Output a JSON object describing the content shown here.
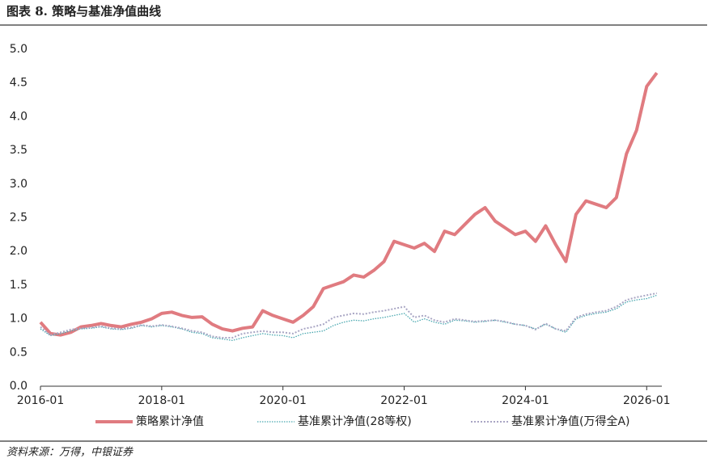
{
  "header": {
    "title": "图表 8. 策略与基准净值曲线"
  },
  "chart_data": {
    "type": "line",
    "x": [
      "2016-01",
      "2016-03",
      "2016-05",
      "2016-07",
      "2016-09",
      "2016-11",
      "2017-01",
      "2017-03",
      "2017-05",
      "2017-07",
      "2017-09",
      "2017-11",
      "2018-01",
      "2018-03",
      "2018-05",
      "2018-07",
      "2018-09",
      "2018-11",
      "2019-01",
      "2019-03",
      "2019-05",
      "2019-07",
      "2019-09",
      "2019-11",
      "2020-01",
      "2020-03",
      "2020-05",
      "2020-07",
      "2020-09",
      "2020-11",
      "2021-01",
      "2021-03",
      "2021-05",
      "2021-07",
      "2021-09",
      "2021-11",
      "2022-01",
      "2022-03",
      "2022-05",
      "2022-07",
      "2022-09",
      "2022-11",
      "2023-01",
      "2023-03",
      "2023-05",
      "2023-07",
      "2023-09",
      "2023-11",
      "2024-01",
      "2024-03",
      "2024-05",
      "2024-07",
      "2024-09",
      "2024-11",
      "2025-01",
      "2025-03",
      "2025-05",
      "2025-07",
      "2025-09",
      "2025-11",
      "2026-01",
      "2026-03"
    ],
    "series": [
      {
        "name": "策略累计净值",
        "color": "#e07b80",
        "values": [
          0.95,
          0.78,
          0.76,
          0.8,
          0.88,
          0.9,
          0.93,
          0.9,
          0.88,
          0.92,
          0.95,
          1.0,
          1.08,
          1.1,
          1.05,
          1.02,
          1.03,
          0.92,
          0.85,
          0.82,
          0.86,
          0.88,
          1.12,
          1.05,
          1.0,
          0.95,
          1.05,
          1.18,
          1.45,
          1.5,
          1.55,
          1.65,
          1.62,
          1.72,
          1.85,
          2.15,
          2.1,
          2.05,
          2.12,
          2.0,
          2.3,
          2.25,
          2.4,
          2.55,
          2.65,
          2.45,
          2.35,
          2.25,
          2.3,
          2.15,
          2.38,
          2.1,
          1.85,
          2.55,
          2.75,
          2.7,
          2.65,
          2.8,
          3.45,
          3.8,
          4.45,
          4.65
        ]
      },
      {
        "name": "基准累计净值(28等权)",
        "color": "#4aa8b0",
        "values": [
          0.85,
          0.75,
          0.78,
          0.82,
          0.85,
          0.86,
          0.88,
          0.85,
          0.84,
          0.86,
          0.9,
          0.88,
          0.9,
          0.88,
          0.85,
          0.8,
          0.78,
          0.72,
          0.7,
          0.68,
          0.72,
          0.75,
          0.78,
          0.76,
          0.75,
          0.72,
          0.78,
          0.8,
          0.82,
          0.9,
          0.95,
          0.98,
          0.97,
          1.0,
          1.02,
          1.05,
          1.08,
          0.95,
          1.0,
          0.95,
          0.92,
          0.98,
          0.97,
          0.95,
          0.96,
          0.98,
          0.95,
          0.92,
          0.9,
          0.85,
          0.92,
          0.85,
          0.8,
          1.0,
          1.05,
          1.08,
          1.1,
          1.15,
          1.25,
          1.28,
          1.3,
          1.35
        ]
      },
      {
        "name": "基准累计净值(万得全A)",
        "color": "#a9a6c4",
        "values": [
          0.88,
          0.76,
          0.8,
          0.84,
          0.86,
          0.87,
          0.89,
          0.86,
          0.85,
          0.87,
          0.91,
          0.89,
          0.91,
          0.89,
          0.86,
          0.82,
          0.8,
          0.74,
          0.72,
          0.72,
          0.78,
          0.8,
          0.82,
          0.8,
          0.8,
          0.78,
          0.85,
          0.88,
          0.92,
          1.02,
          1.05,
          1.08,
          1.07,
          1.1,
          1.12,
          1.15,
          1.18,
          1.02,
          1.05,
          0.98,
          0.95,
          1.0,
          0.98,
          0.96,
          0.97,
          0.98,
          0.96,
          0.92,
          0.9,
          0.84,
          0.93,
          0.85,
          0.82,
          1.02,
          1.07,
          1.1,
          1.12,
          1.18,
          1.28,
          1.32,
          1.35,
          1.38
        ]
      }
    ],
    "xlim": [
      "2016-01",
      "2026-04"
    ],
    "xticks": [
      "2016-01",
      "2018-01",
      "2020-01",
      "2022-01",
      "2024-01",
      "2026-01"
    ],
    "ylim": [
      0,
      5
    ],
    "yticks": [
      {
        "value": 0,
        "label": "0.0"
      },
      0.5,
      {
        "value": 1,
        "label": "1.0"
      },
      1.5,
      {
        "value": 2,
        "label": "2.0"
      },
      2.5,
      {
        "value": 3,
        "label": "3.0"
      },
      3.5,
      {
        "value": 4,
        "label": "4.0"
      },
      4.5,
      {
        "value": 5,
        "label": "5.0"
      }
    ],
    "legend": "bottom"
  },
  "footer": {
    "source": "资料来源：万得，中银证券"
  }
}
